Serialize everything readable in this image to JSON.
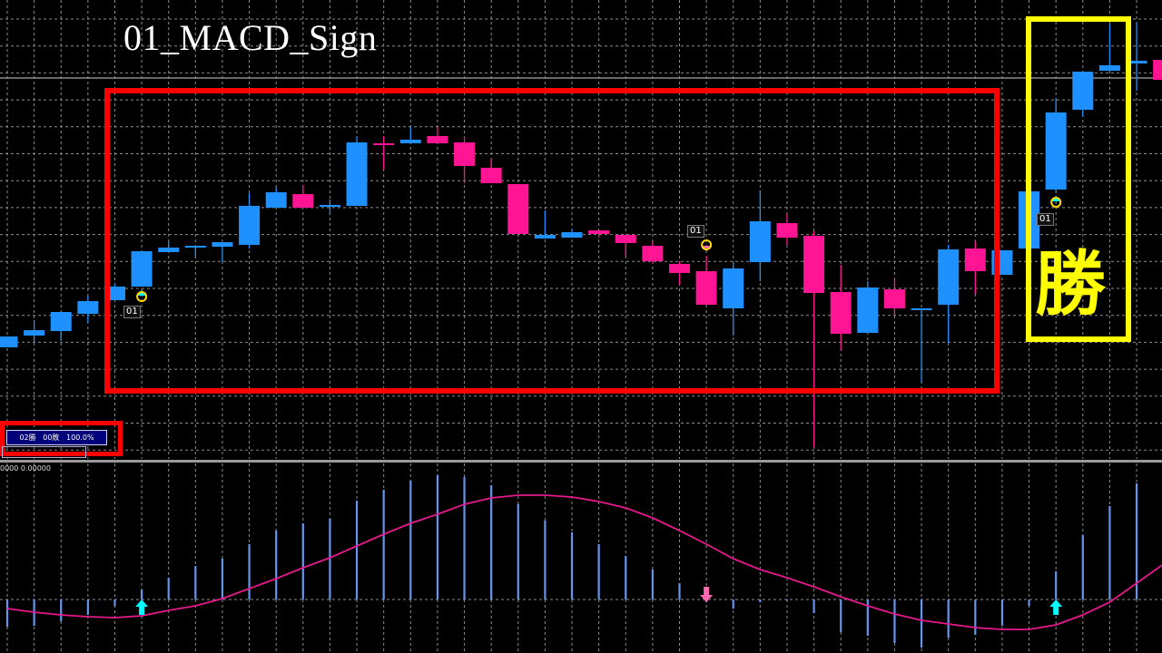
{
  "title": "01_MACD_Sign",
  "win_label": "勝",
  "stats_text": "02勝   00敗   100.0%",
  "macd_label": "0000 0.00000",
  "signal_labels": [
    "01",
    "01",
    "01"
  ],
  "colors": {
    "background": "#000000",
    "bull_candle": "#1e90ff",
    "bear_candle": "#ff1493",
    "macd_histogram": "#6495ed",
    "signal_line": "#e6198c",
    "buy_arrow": "#00ffff",
    "sell_arrow": "#ff69b4",
    "highlight_loss_box": "#ff0000",
    "highlight_win_box": "#ffff00"
  },
  "chart_data": [
    {
      "type": "candlestick",
      "grid": true,
      "ohlc": [
        [
          13.7,
          14.9,
          13.7,
          14.9
        ],
        [
          15.0,
          16.7,
          14.2,
          15.6
        ],
        [
          15.5,
          17.6,
          14.4,
          17.6
        ],
        [
          17.4,
          19.4,
          16.4,
          18.8
        ],
        [
          18.9,
          20.7,
          18.9,
          20.4
        ],
        [
          20.4,
          24.3,
          20.4,
          24.3
        ],
        [
          24.2,
          25.4,
          24.2,
          24.7
        ],
        [
          24.8,
          24.9,
          23.6,
          24.9
        ],
        [
          24.8,
          25.3,
          23.1,
          25.3
        ],
        [
          25.0,
          30.7,
          24.6,
          29.3
        ],
        [
          29.1,
          31.3,
          29.1,
          30.8
        ],
        [
          30.6,
          31.6,
          29.1,
          29.1
        ],
        [
          29.3,
          30.0,
          28.3,
          29.4
        ],
        [
          29.3,
          37.0,
          29.3,
          36.3
        ],
        [
          36.2,
          37.0,
          33.3,
          36.1
        ],
        [
          36.2,
          38.0,
          36.2,
          36.6
        ],
        [
          37.0,
          38.0,
          36.2,
          36.2
        ],
        [
          36.3,
          37.0,
          31.8,
          33.7
        ],
        [
          33.5,
          34.5,
          31.8,
          31.8
        ],
        [
          31.7,
          31.7,
          26.2,
          26.2
        ],
        [
          25.7,
          28.8,
          25.7,
          26.1
        ],
        [
          25.8,
          26.8,
          25.8,
          26.4
        ],
        [
          26.6,
          26.6,
          25.8,
          26.2
        ],
        [
          26.1,
          26.1,
          23.7,
          25.2
        ],
        [
          24.9,
          25.4,
          23.0,
          23.2
        ],
        [
          22.9,
          23.2,
          20.6,
          21.9
        ],
        [
          22.1,
          23.8,
          18.4,
          18.4
        ],
        [
          18.0,
          23.0,
          15.0,
          22.4
        ],
        [
          23.1,
          31.0,
          21.0,
          27.6
        ],
        [
          27.4,
          28.4,
          25.0,
          25.8
        ],
        [
          26.0,
          26.5,
          2.7,
          19.7
        ],
        [
          19.8,
          22.8,
          13.4,
          15.2
        ],
        [
          15.3,
          21.0,
          15.3,
          20.3
        ],
        [
          20.1,
          21.3,
          17.3,
          18.0
        ],
        [
          17.9,
          18.0,
          9.8,
          18.0
        ],
        [
          18.4,
          25.0,
          14.2,
          24.5
        ],
        [
          24.6,
          25.4,
          19.6,
          22.1
        ],
        [
          21.7,
          24.4,
          21.7,
          24.4
        ],
        [
          24.6,
          30.9,
          24.6,
          30.9
        ],
        [
          31.1,
          41.2,
          30.8,
          39.6
        ],
        [
          39.9,
          44.1,
          39.1,
          44.1
        ],
        [
          44.2,
          49.3,
          44.2,
          44.8
        ],
        [
          45.0,
          49.5,
          42.0,
          45.3
        ],
        [
          45.4,
          45.4,
          43.2,
          43.2
        ]
      ],
      "current_price": 43.4,
      "signals": [
        {
          "index": 5,
          "type": "buy",
          "label": "01"
        },
        {
          "index": 26,
          "type": "sell",
          "label": "01"
        },
        {
          "index": 39,
          "type": "buy",
          "label": "01"
        }
      ]
    },
    {
      "type": "bar+line",
      "histogram": [
        -3.0,
        -2.9,
        -2.4,
        -1.7,
        -0.7,
        1.1,
        2.4,
        3.7,
        4.5,
        6.1,
        7.6,
        8.4,
        8.9,
        10.9,
        12.1,
        13.1,
        13.7,
        13.5,
        12.6,
        10.5,
        8.7,
        7.4,
        6.1,
        4.8,
        3.3,
        1.8,
        -0.3,
        -1.0,
        -0.3,
        -0.1,
        -1.5,
        -3.6,
        -4.0,
        -4.8,
        -5.3,
        -4.2,
        -3.9,
        -2.9,
        -0.7,
        3.1,
        7.1,
        10.3,
        12.8,
        14.1
      ],
      "signal": [
        -1.0,
        -1.4,
        -1.7,
        -1.9,
        -2.0,
        -1.8,
        -1.2,
        -0.7,
        0.1,
        1.2,
        2.3,
        3.5,
        4.6,
        5.9,
        7.2,
        8.4,
        9.4,
        10.5,
        11.2,
        11.5,
        11.5,
        11.3,
        10.8,
        10.1,
        9.0,
        7.6,
        6.1,
        4.5,
        3.3,
        2.4,
        1.4,
        0.3,
        -0.7,
        -1.6,
        -2.3,
        -2.7,
        -3.1,
        -3.3,
        -3.3,
        -2.8,
        -1.7,
        -0.3,
        1.8,
        3.9
      ],
      "arrows": [
        {
          "index": 5,
          "type": "up"
        },
        {
          "index": 26,
          "type": "down"
        },
        {
          "index": 39,
          "type": "up"
        }
      ]
    }
  ]
}
